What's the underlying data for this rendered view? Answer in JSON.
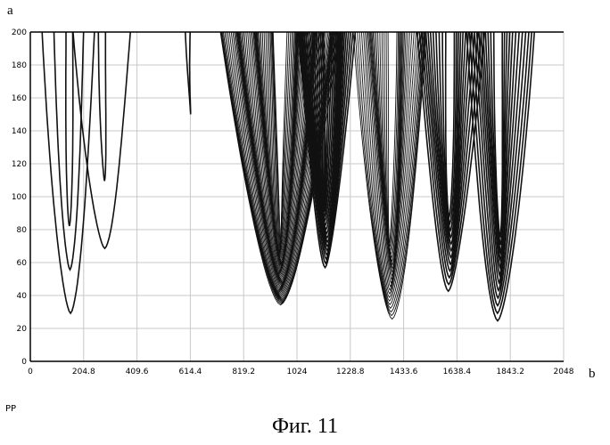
{
  "chart_data": {
    "type": "contour",
    "ylabel": "a",
    "xlabel": "b",
    "corner_label": "PP",
    "caption": "Фиг. 11",
    "xlim": [
      0,
      2048
    ],
    "ylim": [
      0,
      200
    ],
    "x_ticks": [
      "0",
      "204.8",
      "409.6",
      "614.4",
      "819.2",
      "1024",
      "1228.8",
      "1433.6",
      "1638.4",
      "1843.2",
      "2048"
    ],
    "y_ticks": [
      "0",
      "20",
      "40",
      "60",
      "80",
      "100",
      "120",
      "140",
      "160",
      "180",
      "200"
    ],
    "grid": true,
    "line_color": "#111111",
    "grid_color": "#c8c8c8",
    "contours": [
      {
        "center_x": 150,
        "min_y": 28,
        "half_width": 100,
        "levels": 3
      },
      {
        "center_x": 280,
        "min_y": 68,
        "half_width": 110,
        "levels": 2
      },
      {
        "center_x": 610,
        "min_y": 127,
        "half_width": 80,
        "levels": 1
      },
      {
        "center_x": 960,
        "min_y": 6,
        "half_width": 230,
        "levels": 48
      },
      {
        "center_x": 1135,
        "min_y": 48,
        "half_width": 110,
        "levels": 16
      },
      {
        "center_x": 1385,
        "min_y": 13,
        "half_width": 140,
        "levels": 22
      },
      {
        "center_x": 1610,
        "min_y": 36,
        "half_width": 130,
        "levels": 12
      },
      {
        "center_x": 1800,
        "min_y": 18,
        "half_width": 130,
        "levels": 12
      }
    ]
  }
}
